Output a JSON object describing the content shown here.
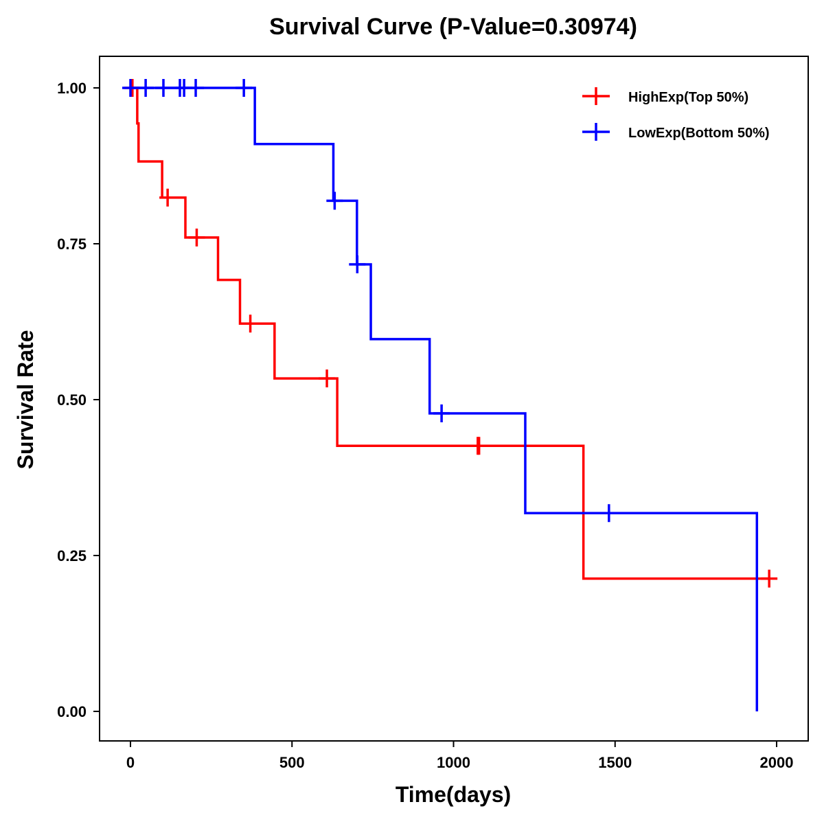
{
  "chart_data": {
    "type": "line",
    "title": "Survival Curve (P-Value=0.30974)",
    "xlabel": "Time(days)",
    "ylabel": "Survival Rate",
    "xlim": [
      -90,
      2095
    ],
    "ylim": [
      -0.05,
      1.05
    ],
    "x_ticks": [
      0,
      500,
      1000,
      1500,
      2000
    ],
    "x_tick_labels": [
      "0",
      "500",
      "1000",
      "1500",
      "2000"
    ],
    "y_ticks": [
      0,
      0.25,
      0.5,
      0.75,
      1.0
    ],
    "y_tick_labels": [
      "0.00",
      "0.25",
      "0.50",
      "0.75",
      "1.00"
    ],
    "grid": false,
    "legend_position": "top-right",
    "series": [
      {
        "name": "HighExp(Top 50%)",
        "color": "#FF0000",
        "steps": [
          [
            0,
            1.0
          ],
          [
            21,
            0.943
          ],
          [
            25,
            0.882
          ],
          [
            98,
            0.824
          ],
          [
            170,
            0.76
          ],
          [
            271,
            0.692
          ],
          [
            339,
            0.622
          ],
          [
            446,
            0.534
          ],
          [
            640,
            0.426
          ],
          [
            1402,
            0.213
          ],
          [
            1977,
            0.213
          ]
        ],
        "censored": [
          [
            6,
            1.0
          ],
          [
            115,
            0.824
          ],
          [
            205,
            0.76
          ],
          [
            371,
            0.622
          ],
          [
            608,
            0.534
          ],
          [
            1075,
            0.426
          ],
          [
            1079,
            0.426
          ],
          [
            1977,
            0.213
          ]
        ]
      },
      {
        "name": "LowExp(Bottom 50%)",
        "color": "#0000FF",
        "steps": [
          [
            0,
            1.0
          ],
          [
            385,
            0.91
          ],
          [
            628,
            0.819
          ],
          [
            701,
            0.717
          ],
          [
            744,
            0.597
          ],
          [
            926,
            0.478
          ],
          [
            1222,
            0.318
          ],
          [
            1939,
            0.0
          ]
        ],
        "censored": [
          [
            0,
            1.0
          ],
          [
            47,
            1.0
          ],
          [
            102,
            1.0
          ],
          [
            153,
            1.0
          ],
          [
            166,
            1.0
          ],
          [
            202,
            1.0
          ],
          [
            351,
            1.0
          ],
          [
            632,
            0.819
          ],
          [
            702,
            0.717
          ],
          [
            963,
            0.478
          ],
          [
            1481,
            0.318
          ]
        ]
      }
    ]
  }
}
